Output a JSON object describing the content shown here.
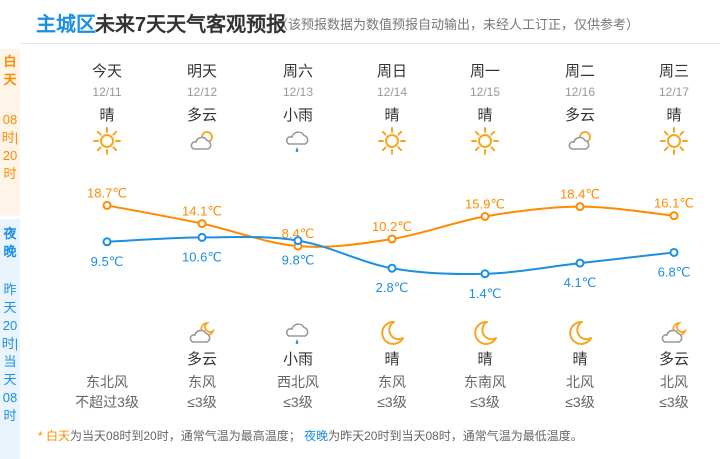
{
  "header": {
    "city": "主城区",
    "title": "未来7天天气客观预报",
    "note": "（该预报数据为数值预报自动输出，未经人工订正，仅供参考）"
  },
  "sidebar": {
    "day_label": "白天",
    "day_time": "08时|20时",
    "night_label": "夜晚",
    "night_time": "昨天20时|当天08时"
  },
  "colors": {
    "day": "#ff8a00",
    "night": "#1a8fe3",
    "sun": "#f5a623"
  },
  "days": [
    {
      "name": "今天",
      "date": "12/11",
      "day_weather": "晴",
      "day_icon": "sun-icon",
      "night_icon": "",
      "night_weather": "",
      "wind_dir": "东北风",
      "wind_level": "不超过3级"
    },
    {
      "name": "明天",
      "date": "12/12",
      "day_weather": "多云",
      "day_icon": "cloudy-icon",
      "night_icon": "cloudy-night-icon",
      "night_weather": "多云",
      "wind_dir": "东风",
      "wind_level": "≤3级"
    },
    {
      "name": "周六",
      "date": "12/13",
      "day_weather": "小雨",
      "day_icon": "light-rain-icon",
      "night_icon": "light-rain-icon",
      "night_weather": "小雨",
      "wind_dir": "西北风",
      "wind_level": "≤3级"
    },
    {
      "name": "周日",
      "date": "12/14",
      "day_weather": "晴",
      "day_icon": "sun-icon",
      "night_icon": "moon-icon",
      "night_weather": "晴",
      "wind_dir": "东风",
      "wind_level": "≤3级"
    },
    {
      "name": "周一",
      "date": "12/15",
      "day_weather": "晴",
      "day_icon": "sun-icon",
      "night_icon": "moon-icon",
      "night_weather": "晴",
      "wind_dir": "东南风",
      "wind_level": "≤3级"
    },
    {
      "name": "周二",
      "date": "12/16",
      "day_weather": "多云",
      "day_icon": "cloudy-icon",
      "night_icon": "moon-icon",
      "night_weather": "晴",
      "wind_dir": "北风",
      "wind_level": "≤3级"
    },
    {
      "name": "周三",
      "date": "12/17",
      "day_weather": "晴",
      "day_icon": "sun-icon",
      "night_icon": "cloudy-night-icon",
      "night_weather": "多云",
      "wind_dir": "北风",
      "wind_level": "≤3级"
    }
  ],
  "chart_data": {
    "type": "line",
    "categories": [
      "12/11",
      "12/12",
      "12/13",
      "12/14",
      "12/15",
      "12/16",
      "12/17"
    ],
    "series": [
      {
        "values": [
          18.7,
          14.1,
          8.4,
          10.2,
          15.9,
          18.4,
          16.1
        ],
        "labels": [
          "18.7℃",
          "14.1℃",
          "8.4℃",
          "10.2℃",
          "15.9℃",
          "18.4℃",
          "16.1℃"
        ],
        "color": "#ff8a00"
      },
      {
        "values": [
          9.5,
          10.6,
          9.8,
          2.8,
          1.4,
          4.1,
          6.8
        ],
        "labels": [
          "9.5℃",
          "10.6℃",
          "9.8℃",
          "2.8℃",
          "1.4℃",
          "4.1℃",
          "6.8℃"
        ],
        "color": "#1a8fe3"
      }
    ],
    "grid": false,
    "legend": "none"
  },
  "footer": {
    "star": "*",
    "day_word": "白天",
    "day_text": "为当天08时到20时，通常气温为最高温度；",
    "night_word": "夜晚",
    "night_text": "为昨天20时到当天08时，通常气温为最低温度。"
  }
}
